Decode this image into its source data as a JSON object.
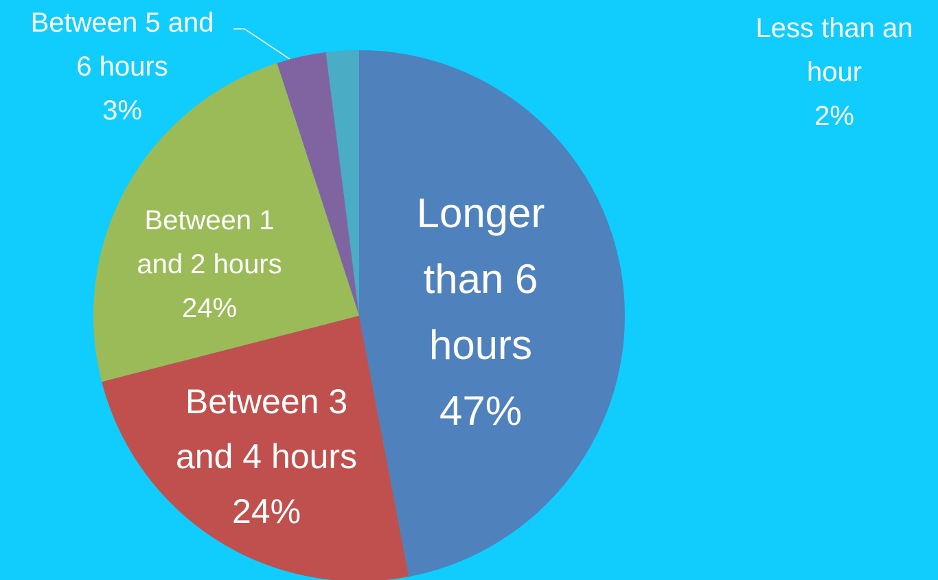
{
  "chart_data": {
    "type": "pie",
    "categories": [
      "Longer than 6 hours",
      "Between 3 and 4 hours",
      "Between 1 and 2 hours",
      "Between 5 and 6 hours",
      "Less than an hour"
    ],
    "values": [
      47,
      24,
      24,
      3,
      2
    ],
    "value_labels": [
      "47%",
      "24%",
      "24%",
      "3%",
      "2%"
    ],
    "colors": [
      "#4f81bd",
      "#c0504d",
      "#9bbb59",
      "#8064a2",
      "#4bacc6"
    ]
  }
}
